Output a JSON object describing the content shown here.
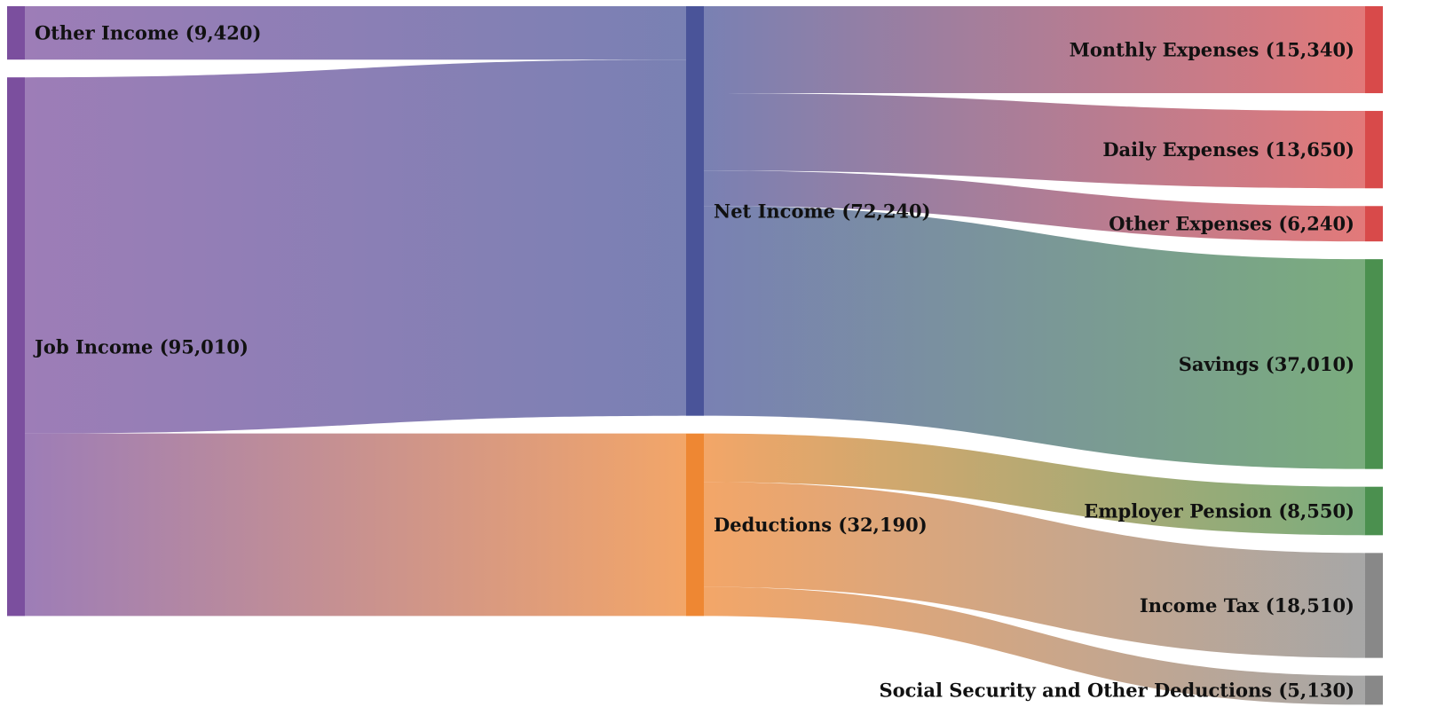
{
  "chart_data": {
    "type": "sankey",
    "nodes": [
      {
        "id": "other_income",
        "label": "Other Income (9,420)",
        "name": "Other Income",
        "value": 9420,
        "column": 0,
        "color": "#7b4f9e"
      },
      {
        "id": "job_income",
        "label": "Job Income (95,010)",
        "name": "Job Income",
        "value": 95010,
        "column": 0,
        "color": "#7b4f9e"
      },
      {
        "id": "net_income",
        "label": "Net Income (72,240)",
        "name": "Net Income",
        "value": 72240,
        "column": 1,
        "color": "#4a5499"
      },
      {
        "id": "deductions",
        "label": "Deductions (32,190)",
        "name": "Deductions",
        "value": 32190,
        "column": 1,
        "color": "#ee8733"
      },
      {
        "id": "monthly_expenses",
        "label": "Monthly Expenses (15,340)",
        "name": "Monthly Expenses",
        "value": 15340,
        "column": 2,
        "color": "#d84a4a"
      },
      {
        "id": "daily_expenses",
        "label": "Daily Expenses (13,650)",
        "name": "Daily Expenses",
        "value": 13650,
        "column": 2,
        "color": "#d84a4a"
      },
      {
        "id": "other_expenses",
        "label": "Other Expenses (6,240)",
        "name": "Other Expenses",
        "value": 6240,
        "column": 2,
        "color": "#d84a4a"
      },
      {
        "id": "savings",
        "label": "Savings (37,010)",
        "name": "Savings",
        "value": 37010,
        "column": 2,
        "color": "#4b904f"
      },
      {
        "id": "employer_pension",
        "label": "Employer Pension (8,550)",
        "name": "Employer Pension",
        "value": 8550,
        "column": 2,
        "color": "#4b904f"
      },
      {
        "id": "income_tax",
        "label": "Income Tax (18,510)",
        "name": "Income Tax",
        "value": 18510,
        "column": 2,
        "color": "#888888"
      },
      {
        "id": "social_security",
        "label": "Social Security and Other Deductions (5,130)",
        "name": "Social Security and Other Deductions",
        "value": 5130,
        "column": 2,
        "color": "#888888"
      }
    ],
    "links": [
      {
        "source": "other_income",
        "target": "net_income",
        "value": 9420
      },
      {
        "source": "job_income",
        "target": "net_income",
        "value": 62820
      },
      {
        "source": "job_income",
        "target": "deductions",
        "value": 32190
      },
      {
        "source": "net_income",
        "target": "monthly_expenses",
        "value": 15340
      },
      {
        "source": "net_income",
        "target": "daily_expenses",
        "value": 13650
      },
      {
        "source": "net_income",
        "target": "other_expenses",
        "value": 6240
      },
      {
        "source": "net_income",
        "target": "savings",
        "value": 37010
      },
      {
        "source": "deductions",
        "target": "employer_pension",
        "value": 8550
      },
      {
        "source": "deductions",
        "target": "income_tax",
        "value": 18510
      },
      {
        "source": "deductions",
        "target": "social_security",
        "value": 5130
      }
    ]
  }
}
